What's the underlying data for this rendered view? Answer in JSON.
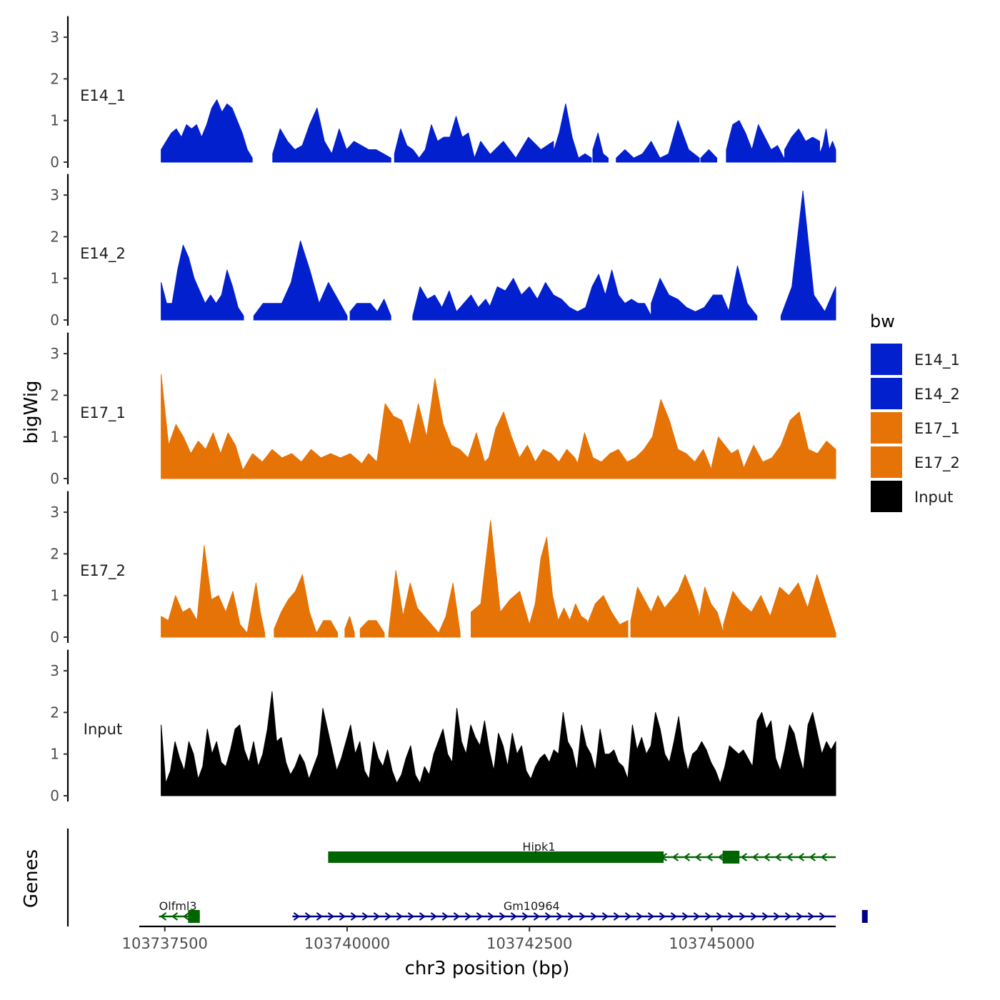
{
  "chart_data": {
    "type": "area",
    "ylabel": "bigWig",
    "genes_label": "Genes",
    "xlabel": "chr3 position (bp)",
    "xlim": [
      103737150,
      103746700
    ],
    "ylim": [
      0,
      3.3
    ],
    "y_ticks": [
      "0",
      "1",
      "2",
      "3"
    ],
    "x_ticks": [
      {
        "value": 103737500,
        "label": "103737500"
      },
      {
        "value": 103740000,
        "label": "103740000"
      },
      {
        "value": 103742500,
        "label": "103742500"
      },
      {
        "value": 103745000,
        "label": "103745000"
      }
    ],
    "legend": {
      "title": "bw",
      "entries": [
        {
          "label": "E14_1",
          "color": "#0320CF"
        },
        {
          "label": "E14_2",
          "color": "#0320CF"
        },
        {
          "label": "E17_1",
          "color": "#E57305"
        },
        {
          "label": "E17_2",
          "color": "#E57305"
        },
        {
          "label": "Input",
          "color": "#000000"
        }
      ]
    },
    "series": [
      {
        "name": "E14_1",
        "color": "#0320CF",
        "segments": [
          {
            "start": 103737450,
            "end": 103738700,
            "values": [
              0.3,
              0.5,
              0.7,
              0.8,
              0.6,
              0.9,
              0.8,
              0.9,
              0.6,
              0.9,
              1.3,
              1.5,
              1.2,
              1.4,
              1.3,
              1.0,
              0.7,
              0.3,
              0.1
            ]
          },
          {
            "start": 103738980,
            "end": 103740600,
            "values": [
              0.2,
              0.8,
              0.5,
              0.3,
              0.4,
              0.9,
              1.3,
              0.5,
              0.2,
              0.8,
              0.3,
              0.5,
              0.4,
              0.3,
              0.3,
              0.2,
              0.1
            ]
          },
          {
            "start": 103740650,
            "end": 103742000,
            "values": [
              0.2,
              0.8,
              0.4,
              0.3,
              0.1,
              0.3,
              0.9,
              0.5,
              0.6,
              0.6,
              1.1,
              0.6,
              0.7,
              0.1,
              0.5,
              0.3,
              0.1
            ]
          },
          {
            "start": 103741970,
            "end": 103742830,
            "values": [
              0.2,
              0.5,
              0.1,
              0.6,
              0.3,
              0.5
            ]
          },
          {
            "start": 103742820,
            "end": 103743350,
            "values": [
              0.2,
              0.7,
              1.4,
              0.6,
              0.1,
              0.2,
              0.1
            ]
          },
          {
            "start": 103743370,
            "end": 103743580,
            "values": [
              0.3,
              0.7,
              0.2,
              0.1
            ]
          },
          {
            "start": 103743690,
            "end": 103744410,
            "values": [
              0.1,
              0.3,
              0.1,
              0.2,
              0.5,
              0.1,
              0.2
            ]
          },
          {
            "start": 103744390,
            "end": 103744830,
            "values": [
              0.1,
              1.0,
              0.3,
              0.1
            ]
          },
          {
            "start": 103744850,
            "end": 103745070,
            "values": [
              0.1,
              0.3,
              0.1
            ]
          },
          {
            "start": 103745200,
            "end": 103745990,
            "values": [
              0.3,
              0.9,
              1.0,
              0.7,
              0.3,
              0.9,
              0.6,
              0.3,
              0.4,
              0.1
            ]
          },
          {
            "start": 103746000,
            "end": 103746480,
            "values": [
              0.3,
              0.6,
              0.8,
              0.5,
              0.6,
              0.5
            ]
          },
          {
            "start": 103746480,
            "end": 103747150,
            "values": [
              0.2,
              0.4,
              0.8,
              0.3,
              0.5,
              0.3
            ]
          }
        ]
      },
      {
        "name": "E14_2",
        "color": "#0320CF",
        "segments": [
          {
            "start": 103737450,
            "end": 103738580,
            "values": [
              0.9,
              0.4,
              0.4,
              1.2,
              1.8,
              1.5,
              1.0,
              0.7,
              0.4,
              0.6,
              0.4,
              0.6,
              1.2,
              0.8,
              0.3,
              0.1
            ]
          },
          {
            "start": 103738720,
            "end": 103740000,
            "values": [
              0.1,
              0.4,
              0.4,
              0.4,
              0.9,
              1.9,
              1.2,
              0.4,
              0.9,
              0.5,
              0.1
            ]
          },
          {
            "start": 103740040,
            "end": 103740600,
            "values": [
              0.2,
              0.4,
              0.4,
              0.4,
              0.2,
              0.5,
              0.1
            ]
          },
          {
            "start": 103740900,
            "end": 103742000,
            "values": [
              0.1,
              0.8,
              0.5,
              0.6,
              0.3,
              0.7,
              0.2,
              0.4,
              0.6,
              0.3,
              0.5,
              0.2
            ]
          },
          {
            "start": 103741950,
            "end": 103743270,
            "values": [
              0.3,
              0.8,
              0.7,
              1.0,
              0.6,
              0.8,
              0.5,
              0.9,
              0.6,
              0.5,
              0.3,
              0.2,
              0.3
            ]
          },
          {
            "start": 103743270,
            "end": 103744170,
            "values": [
              0.3,
              0.8,
              1.1,
              0.6,
              1.2,
              0.6,
              0.4,
              0.5,
              0.4,
              0.4,
              0.1
            ]
          },
          {
            "start": 103744170,
            "end": 103745260,
            "values": [
              0.4,
              1.0,
              0.6,
              0.5,
              0.3,
              0.2,
              0.3,
              0.6,
              0.6,
              0.1
            ]
          },
          {
            "start": 103745220,
            "end": 103745620,
            "values": [
              0.1,
              1.3,
              0.4,
              0.1
            ]
          },
          {
            "start": 103745950,
            "end": 103747150,
            "values": [
              0.1,
              0.8,
              3.1,
              0.6,
              0.2,
              0.8
            ]
          }
        ]
      },
      {
        "name": "E17_1",
        "color": "#E57305",
        "segments": [
          {
            "start": 103737450,
            "end": 103738570,
            "values": [
              2.5,
              0.8,
              1.3,
              1.0,
              0.6,
              0.9,
              0.7,
              1.1,
              0.6,
              1.1,
              0.8,
              0.2
            ]
          },
          {
            "start": 103738570,
            "end": 103740310,
            "values": [
              0.2,
              0.6,
              0.4,
              0.7,
              0.5,
              0.6,
              0.4,
              0.7,
              0.5,
              0.6,
              0.5,
              0.6,
              0.4,
              0.1
            ]
          },
          {
            "start": 103740180,
            "end": 103742000,
            "values": [
              0.3,
              0.6,
              0.4,
              1.8,
              1.5,
              1.4,
              0.8,
              1.8,
              1.0,
              2.4,
              1.3,
              0.8,
              0.7,
              0.5,
              1.1,
              0.4,
              0.6
            ]
          },
          {
            "start": 103741930,
            "end": 103743230,
            "values": [
              0.4,
              1.2,
              1.6,
              1.0,
              0.5,
              0.8,
              0.4,
              0.7,
              0.6,
              0.4,
              0.7,
              0.5,
              0.1
            ]
          },
          {
            "start": 103743140,
            "end": 103745000,
            "values": [
              0.2,
              1.1,
              0.5,
              0.4,
              0.6,
              0.7,
              0.4,
              0.5,
              0.7,
              1.0,
              1.9,
              1.4,
              0.7,
              0.6,
              0.4,
              0.7,
              0.2
            ]
          },
          {
            "start": 103745000,
            "end": 103745450,
            "values": [
              0.3,
              1.0,
              0.8,
              0.6,
              0.7,
              0.2
            ]
          },
          {
            "start": 103745450,
            "end": 103747150,
            "values": [
              0.3,
              0.8,
              0.4,
              0.5,
              0.8,
              1.4,
              1.6,
              0.7,
              0.6,
              0.9,
              0.7
            ]
          }
        ]
      },
      {
        "name": "E17_2",
        "color": "#E57305",
        "segments": [
          {
            "start": 103737450,
            "end": 103738630,
            "values": [
              0.5,
              0.4,
              1.0,
              0.6,
              0.7,
              0.4,
              2.2,
              0.9,
              1.0,
              0.6,
              1.1,
              0.3,
              0.1
            ]
          },
          {
            "start": 103738630,
            "end": 103738870,
            "values": [
              0.1,
              0.7,
              1.3,
              0.6,
              0.1
            ]
          },
          {
            "start": 103739000,
            "end": 103739580,
            "values": [
              0.2,
              0.6,
              0.9,
              1.1,
              1.5,
              0.6,
              0.1
            ]
          },
          {
            "start": 103739580,
            "end": 103739870,
            "values": [
              0.1,
              0.4,
              0.4,
              0.1
            ]
          },
          {
            "start": 103739970,
            "end": 103740100,
            "values": [
              0.2,
              0.5,
              0.1
            ]
          },
          {
            "start": 103740180,
            "end": 103740510,
            "values": [
              0.2,
              0.4,
              0.4,
              0.1
            ]
          },
          {
            "start": 103740570,
            "end": 103741550,
            "values": [
              0.1,
              1.6,
              0.5,
              1.3,
              0.7,
              0.5,
              0.3,
              0.1,
              0.5,
              1.3,
              0.1
            ]
          },
          {
            "start": 103741700,
            "end": 103742500,
            "values": [
              0.6,
              0.8,
              2.8,
              0.6,
              0.9,
              1.1,
              0.3
            ]
          },
          {
            "start": 103742500,
            "end": 103743290,
            "values": [
              0.3,
              0.8,
              1.9,
              2.4,
              1.0,
              0.4,
              0.7,
              0.4,
              0.8,
              0.5,
              0.4
            ]
          },
          {
            "start": 103743290,
            "end": 103743850,
            "values": [
              0.3,
              0.8,
              1.0,
              0.6,
              0.3,
              0.4
            ]
          },
          {
            "start": 103743890,
            "end": 103744820,
            "values": [
              0.4,
              1.2,
              0.9,
              0.6,
              1.0,
              0.7,
              0.9,
              1.1,
              1.5,
              1.1,
              0.6
            ]
          },
          {
            "start": 103744820,
            "end": 103745160,
            "values": [
              0.4,
              1.2,
              0.8,
              0.6,
              0.1
            ]
          },
          {
            "start": 103745160,
            "end": 103747150,
            "values": [
              0.3,
              1.1,
              0.8,
              0.6,
              1.0,
              0.5,
              1.2,
              1.0,
              1.3,
              0.7,
              1.5,
              0.8,
              0.1
            ]
          }
        ]
      },
      {
        "name": "Input",
        "color": "#000000",
        "segments": [
          {
            "start": 103737450,
            "end": 103747150,
            "values": [
              1.7,
              0.3,
              0.6,
              1.3,
              0.9,
              0.6,
              1.3,
              1.0,
              0.4,
              0.7,
              1.6,
              1.0,
              1.3,
              0.8,
              0.7,
              1.1,
              1.6,
              1.7,
              1.1,
              0.8,
              1.3,
              0.7,
              1.0,
              1.6,
              2.5,
              1.3,
              1.4,
              0.8,
              0.5,
              0.7,
              1.0,
              0.8,
              0.4,
              0.7,
              1.0,
              2.1,
              1.6,
              1.1,
              0.6,
              0.9,
              1.3,
              1.7,
              1.0,
              1.3,
              0.6,
              0.4,
              1.3,
              0.9,
              0.7,
              1.1,
              0.6,
              0.3,
              0.5,
              0.9,
              1.2,
              0.5,
              0.3,
              0.7,
              0.5,
              1.0,
              1.3,
              1.6,
              1.0,
              0.8,
              2.1,
              1.3,
              1.0,
              1.7,
              1.4,
              1.2,
              1.8,
              1.1,
              0.6,
              1.5,
              1.2,
              0.7,
              1.5,
              1.0,
              1.2,
              0.6,
              0.4,
              0.7,
              0.9,
              1.0,
              0.8,
              1.1,
              1.0,
              2.0,
              1.3,
              1.1,
              0.6,
              1.7,
              1.2,
              1.0,
              0.6,
              1.6,
              1.0,
              1.0,
              1.1,
              0.8,
              0.7,
              0.4,
              1.7,
              1.1,
              1.4,
              1.0,
              1.2,
              2.0,
              1.6,
              1.0,
              0.8,
              1.3,
              1.9,
              1.1,
              0.6,
              1.0,
              1.1,
              1.3,
              1.1,
              0.8,
              0.6,
              0.3,
              0.7,
              1.2,
              1.1,
              1.0,
              1.1,
              0.9,
              0.7,
              1.8,
              2.0,
              1.6,
              1.8,
              0.9,
              0.6,
              1.1,
              1.7,
              1.5,
              1.0,
              0.6,
              1.7,
              2.0,
              1.5,
              1.0,
              1.3,
              1.1,
              1.3
            ]
          }
        ]
      }
    ],
    "genes": [
      {
        "name": "Hipk1",
        "color": "#006400",
        "strand": "-",
        "start": 103739740,
        "end": 103747150,
        "row": 1,
        "label_pos": 103742630,
        "exons": [
          {
            "start": 103739740,
            "end": 103744340,
            "type": "thick"
          },
          {
            "start": 103743180,
            "end": 103744340,
            "type": "thick"
          },
          {
            "start": 103745150,
            "end": 103745380,
            "type": "block"
          }
        ]
      },
      {
        "name": "Olfml3",
        "color": "#006400",
        "strand": "-",
        "start": 103737420,
        "end": 103737980,
        "row": 2,
        "label_pos": 103737680,
        "exons": [
          {
            "start": 103737820,
            "end": 103737980,
            "type": "block"
          }
        ]
      },
      {
        "name": "Gm10964",
        "color": "#00008B",
        "strand": "+",
        "start": 103739250,
        "end": 103747150,
        "row": 2,
        "label_pos": 103742530,
        "exons": [
          {
            "start": 103747060,
            "end": 103747150,
            "type": "block"
          }
        ]
      }
    ]
  }
}
